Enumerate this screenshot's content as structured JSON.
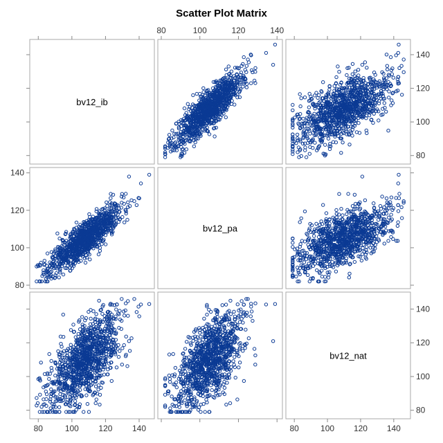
{
  "chart_data": {
    "type": "scatter",
    "subtype": "scatter-matrix",
    "title": "Scatter Plot Matrix",
    "variables": [
      "bv12_ib",
      "bv12_pa",
      "bv12_nat"
    ],
    "n_points": 1100,
    "marker": "open-circle",
    "marker_color": "#0b3a94",
    "grid": false,
    "axes": {
      "bv12_ib": {
        "range": [
          77,
          147
        ],
        "ticks": [
          80,
          100,
          120,
          140
        ]
      },
      "bv12_pa": {
        "range": [
          80,
          141
        ],
        "ticks": [
          80,
          100,
          120,
          140
        ]
      },
      "bv12_nat": {
        "range": [
          77,
          148
        ],
        "ticks": [
          80,
          100,
          120,
          140
        ]
      }
    },
    "distribution": {
      "means": [
        108,
        105,
        110
      ],
      "sds": [
        11,
        9,
        14
      ],
      "correlations": {
        "ib_pa": 0.85,
        "ib_nat": 0.65,
        "pa_nat": 0.58
      }
    },
    "highlighted_points": [
      {
        "bv12_ib": 146,
        "bv12_pa": 139,
        "bv12_nat": 143
      },
      {
        "bv12_ib": 134,
        "bv12_pa": 138,
        "bv12_nat": 121
      },
      {
        "bv12_ib": 82,
        "bv12_pa": 82,
        "bv12_nat": 82
      }
    ]
  }
}
